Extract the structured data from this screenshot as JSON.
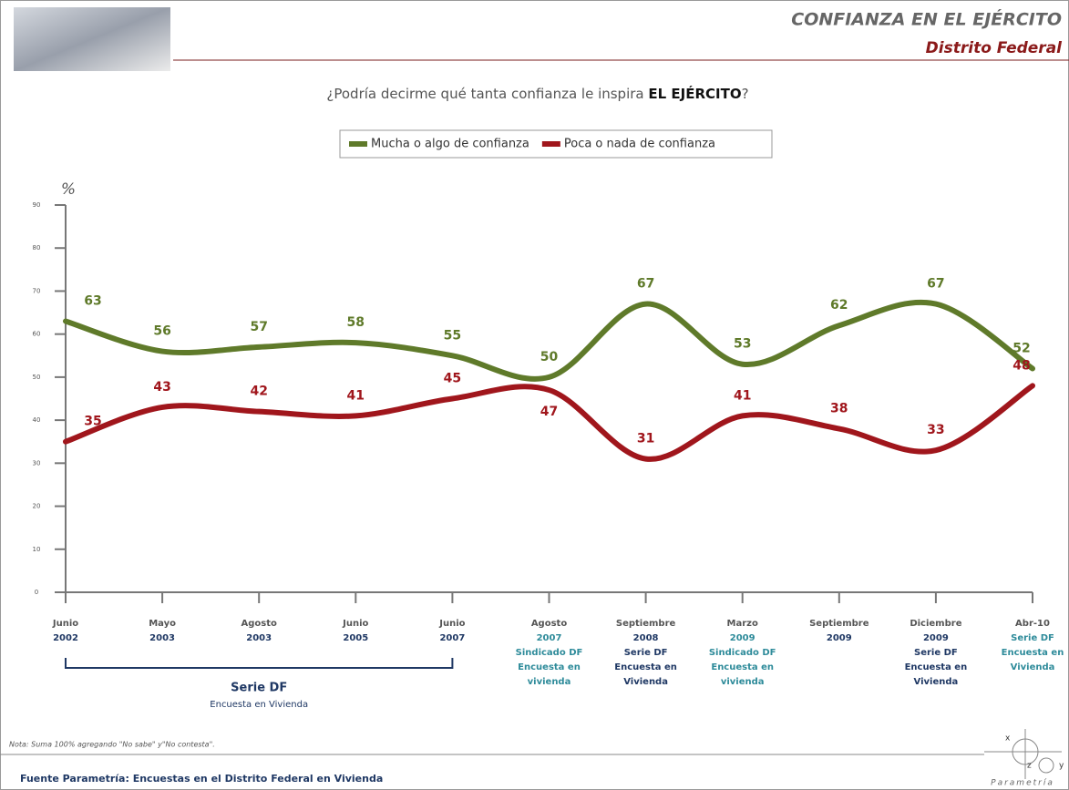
{
  "header": {
    "title": "CONFIANZA EN EL EJÉRCITO",
    "subtitle": "Distrito Federal"
  },
  "chart_data": {
    "type": "line",
    "title": {
      "text": "¿Podría decirme qué tanta confianza le inspira ",
      "emphasis": "EL EJÉRCITO",
      "end": "?"
    },
    "y_label": "%",
    "categories": [
      [
        "Junio",
        "2002"
      ],
      [
        "Mayo",
        "2003"
      ],
      [
        "Agosto",
        "2003"
      ],
      [
        "Junio",
        "2005"
      ],
      [
        "Junio",
        "2007"
      ],
      [
        "Agosto",
        "2007",
        "Sindicado DF",
        "Encuesta en",
        "vivienda"
      ],
      [
        "Septiembre",
        "2008",
        "Serie DF",
        "Encuesta en",
        "Vivienda"
      ],
      [
        "Marzo",
        "2009",
        "Sindicado DF",
        "Encuesta en",
        "vivienda"
      ],
      [
        "Septiembre",
        "2009"
      ],
      [
        "Diciembre",
        "2009",
        "Serie DF",
        "Encuesta en",
        "Vivienda"
      ],
      [
        "Abr-10",
        "Serie DF",
        "Encuesta en",
        "Vivienda"
      ]
    ],
    "category_colors": [
      "#1f3864",
      "#1f3864",
      "#1f3864",
      "#1f3864",
      "#1f3864",
      "#2e8b9a",
      "#1f3864",
      "#2e8b9a",
      "#1f3864",
      "#1f3864",
      "#2e8b9a"
    ],
    "series": [
      {
        "name": "Mucha o algo de confianza",
        "color": "#5f7a2a",
        "values": [
          63,
          56,
          57,
          58,
          55,
          50,
          67,
          53,
          62,
          67,
          52
        ]
      },
      {
        "name": "Poca o nada de confianza",
        "color": "#a0161c",
        "values": [
          35,
          43,
          42,
          41,
          45,
          47,
          31,
          41,
          38,
          33,
          48
        ]
      }
    ],
    "ylim": [
      0,
      90
    ],
    "yticks": [
      0,
      10,
      20,
      30,
      40,
      50,
      60,
      70,
      80,
      90
    ],
    "bracket": {
      "from": 0,
      "to": 4,
      "label": "Serie DF",
      "sublabel": "Encuesta en Vivienda"
    }
  },
  "note": "Nota: Suma 100% agregando \"No sabe\" y\"No contesta\".",
  "footer": "Fuente Parametría: Encuestas en el Distrito Federal en Vivienda",
  "logo": {
    "text": "Parametría",
    "axes": [
      "x",
      "z",
      "y"
    ]
  }
}
